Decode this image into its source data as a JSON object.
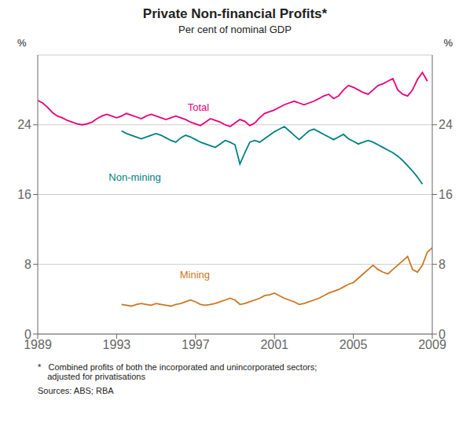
{
  "chart_data": {
    "type": "line",
    "title": "Private Non-financial Profits*",
    "subtitle": "Per cent of nominal GDP",
    "ylabel": "%",
    "y2label": "%",
    "notes": [
      "*   Combined profits of both the incorporated and unincorporated sectors;\n    adjusted for privatisations",
      "Sources: ABS; RBA"
    ],
    "grid": true,
    "xlim": [
      1989,
      2009
    ],
    "xticks": [
      1989,
      1993,
      1997,
      2001,
      2005,
      2009
    ],
    "ylim": [
      0,
      32
    ],
    "yticks": [
      0,
      8,
      16,
      24
    ],
    "y2lim": [
      0,
      32
    ],
    "y2ticks": [
      0,
      8,
      16,
      24
    ],
    "x": [
      1989,
      1989.25,
      1989.5,
      1989.75,
      1990,
      1990.25,
      1990.5,
      1990.75,
      1991,
      1991.25,
      1991.5,
      1991.75,
      1992,
      1992.25,
      1992.5,
      1992.75,
      1993,
      1993.25,
      1993.5,
      1993.75,
      1994,
      1994.25,
      1994.5,
      1994.75,
      1995,
      1995.25,
      1995.5,
      1995.75,
      1996,
      1996.25,
      1996.5,
      1996.75,
      1997,
      1997.25,
      1997.5,
      1997.75,
      1998,
      1998.25,
      1998.5,
      1998.75,
      1999,
      1999.25,
      1999.5,
      1999.75,
      2000,
      2000.25,
      2000.5,
      2000.75,
      2001,
      2001.25,
      2001.5,
      2001.75,
      2002,
      2002.25,
      2002.5,
      2002.75,
      2003,
      2003.25,
      2003.5,
      2003.75,
      2004,
      2004.25,
      2004.5,
      2004.75,
      2005,
      2005.25,
      2005.5,
      2005.75,
      2006,
      2006.25,
      2006.5,
      2006.75,
      2007,
      2007.25,
      2007.5,
      2007.75,
      2008,
      2008.25,
      2008.5,
      2008.75,
      2009
    ],
    "series": [
      {
        "name": "Total",
        "color": "#E8007D",
        "values": [
          26.8,
          26.5,
          26.0,
          25.4,
          25.0,
          24.8,
          24.5,
          24.3,
          24.1,
          24.0,
          24.1,
          24.3,
          24.7,
          25.0,
          25.2,
          25.0,
          24.8,
          25.0,
          25.3,
          25.1,
          24.9,
          24.7,
          25.0,
          25.2,
          25.0,
          24.8,
          24.6,
          24.8,
          25.0,
          24.8,
          24.6,
          24.3,
          24.1,
          23.9,
          24.3,
          24.7,
          24.5,
          24.3,
          24.0,
          23.8,
          24.2,
          24.6,
          24.4,
          23.9,
          24.2,
          24.8,
          25.3,
          25.5,
          25.7,
          26.0,
          26.3,
          26.5,
          26.7,
          26.5,
          26.3,
          26.5,
          26.7,
          27.0,
          27.3,
          27.5,
          27.0,
          27.3,
          28.0,
          28.5,
          28.3,
          28.0,
          27.7,
          27.5,
          28.0,
          28.5,
          28.7,
          29.0,
          29.3,
          28.0,
          27.5,
          27.3,
          28.0,
          29.2,
          30.0,
          29.0,
          null
        ]
      },
      {
        "name": "Non-mining",
        "color": "#008080",
        "values": [
          null,
          null,
          null,
          null,
          null,
          null,
          null,
          null,
          null,
          null,
          null,
          null,
          null,
          null,
          null,
          null,
          null,
          23.3,
          23.0,
          22.8,
          22.6,
          22.4,
          22.6,
          22.8,
          23.0,
          22.8,
          22.5,
          22.2,
          22.0,
          22.5,
          22.8,
          22.6,
          22.3,
          22.0,
          21.8,
          21.6,
          21.4,
          21.8,
          22.2,
          22.0,
          21.7,
          19.5,
          20.8,
          22.0,
          22.2,
          22.0,
          22.4,
          22.8,
          23.2,
          23.5,
          23.8,
          23.3,
          22.8,
          22.3,
          22.8,
          23.3,
          23.5,
          23.2,
          22.9,
          22.6,
          22.3,
          22.6,
          22.9,
          22.4,
          22.1,
          21.8,
          22.0,
          22.2,
          22.0,
          21.7,
          21.4,
          21.1,
          20.8,
          20.4,
          19.9,
          19.3,
          18.7,
          18.0,
          17.2,
          null,
          null
        ]
      },
      {
        "name": "Mining",
        "color": "#CC7722",
        "values": [
          null,
          null,
          null,
          null,
          null,
          null,
          null,
          null,
          null,
          null,
          null,
          null,
          null,
          null,
          null,
          null,
          null,
          3.4,
          3.3,
          3.2,
          3.4,
          3.5,
          3.4,
          3.3,
          3.5,
          3.4,
          3.3,
          3.2,
          3.4,
          3.5,
          3.7,
          3.9,
          3.7,
          3.4,
          3.3,
          3.4,
          3.5,
          3.7,
          3.9,
          4.1,
          3.9,
          3.4,
          3.5,
          3.7,
          3.9,
          4.1,
          4.4,
          4.5,
          4.7,
          4.4,
          4.1,
          3.9,
          3.7,
          3.4,
          3.5,
          3.7,
          3.9,
          4.1,
          4.4,
          4.7,
          4.9,
          5.1,
          5.4,
          5.7,
          5.9,
          6.4,
          6.9,
          7.4,
          7.9,
          7.4,
          7.1,
          6.9,
          7.4,
          7.9,
          8.4,
          8.9,
          7.4,
          7.1,
          7.9,
          9.4,
          9.9
        ]
      }
    ]
  }
}
